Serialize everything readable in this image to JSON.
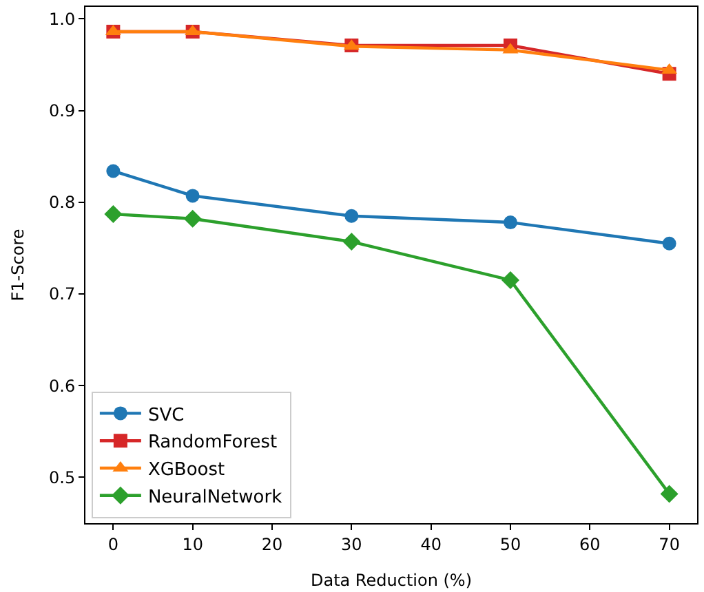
{
  "chart_data": {
    "type": "line",
    "xlabel": "Data Reduction (%)",
    "ylabel": "F1-Score",
    "x": [
      0,
      10,
      30,
      50,
      70
    ],
    "series": [
      {
        "name": "SVC",
        "color": "#1f77b4",
        "marker": "circle",
        "values": [
          0.834,
          0.807,
          0.785,
          0.778,
          0.755
        ]
      },
      {
        "name": "RandomForest",
        "color": "#d62728",
        "marker": "square",
        "values": [
          0.986,
          0.986,
          0.971,
          0.971,
          0.94
        ]
      },
      {
        "name": "XGBoost",
        "color": "#ff7f0e",
        "marker": "triangle",
        "values": [
          0.986,
          0.986,
          0.97,
          0.966,
          0.944
        ]
      },
      {
        "name": "NeuralNetwork",
        "color": "#2ca02c",
        "marker": "diamond",
        "values": [
          0.787,
          0.782,
          0.757,
          0.715,
          0.482
        ]
      }
    ],
    "xlim": [
      -3.5,
      73.5
    ],
    "xticks": [
      0,
      10,
      20,
      30,
      40,
      50,
      60,
      70
    ],
    "ylim": [
      0.45,
      1.013
    ],
    "yticks": [
      0.5,
      0.6,
      0.7,
      0.8,
      0.9,
      {
        "value": 1.0,
        "label": "1.0"
      }
    ],
    "legend": "bottom left",
    "line_style": "solid"
  }
}
